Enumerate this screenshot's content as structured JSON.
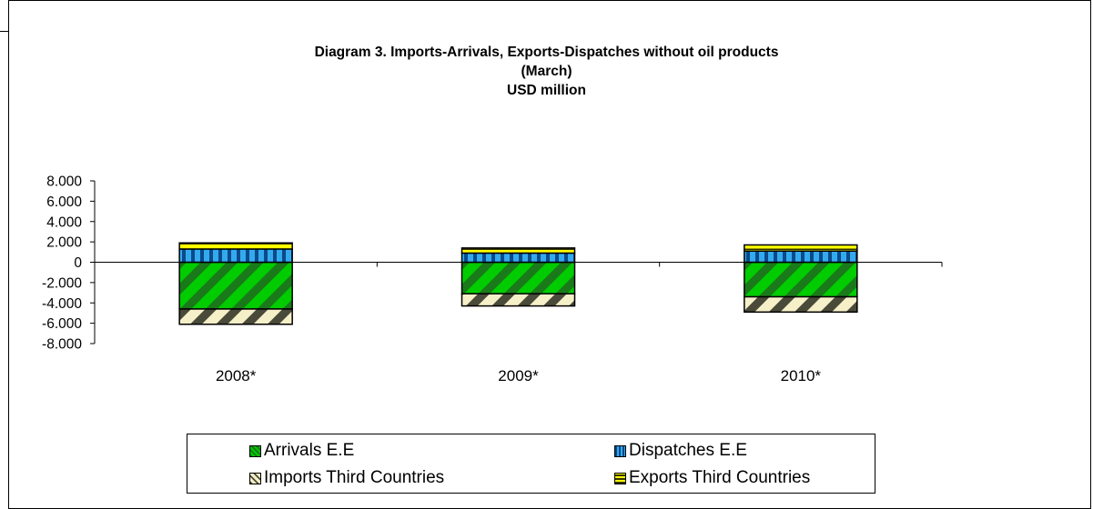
{
  "chart_data": {
    "type": "bar",
    "stacked": true,
    "title": "Diagram 3. Imports-Arrivals,  Exports-Dispatches without oil products",
    "subtitle": "(March)",
    "unit": "USD million",
    "categories": [
      "2008*",
      "2009*",
      "2010*"
    ],
    "ylim": [
      -8000,
      8000
    ],
    "yticks": [
      "8.000",
      "6.000",
      "4.000",
      "2.000",
      "0",
      "-2.000",
      "-4.000",
      "-6.000",
      "-8.000"
    ],
    "ytick_values": [
      8000,
      6000,
      4000,
      2000,
      0,
      -2000,
      -4000,
      -6000,
      -8000
    ],
    "series": [
      {
        "name": "Arrivals E.E",
        "values": [
          -4600,
          -3100,
          -3400
        ],
        "color": "#00cc00",
        "pattern": "diagonal-stripes"
      },
      {
        "name": "Dispatches  E.E",
        "values": [
          1300,
          900,
          1100
        ],
        "color": "#33aaee",
        "pattern": "vertical-stripes"
      },
      {
        "name": "Imports Third Countries",
        "values": [
          -1500,
          -1200,
          -1500
        ],
        "color": "#f5f0c8",
        "pattern": "diagonal-stripes"
      },
      {
        "name": "Exports Third Countries",
        "values": [
          600,
          500,
          600
        ],
        "color": "#ffff00",
        "pattern": "horizontal-stripes"
      }
    ],
    "legend_position": "bottom",
    "grid": false
  }
}
